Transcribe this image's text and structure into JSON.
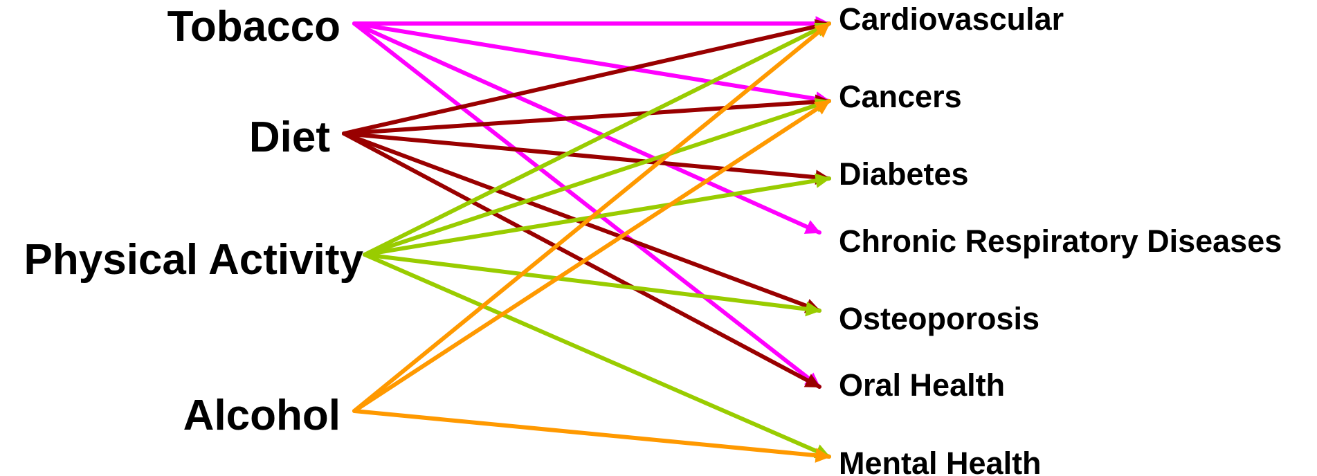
{
  "risk_factors": [
    {
      "id": "tobacco",
      "label": "Tobacco",
      "color": "#FF00FF"
    },
    {
      "id": "diet",
      "label": "Diet",
      "color": "#990000"
    },
    {
      "id": "physical_activity",
      "label": "Physical Activity",
      "color": "#99CC00"
    },
    {
      "id": "alcohol",
      "label": "Alcohol",
      "color": "#FF9900"
    }
  ],
  "diseases": [
    {
      "id": "cardiovascular",
      "label": "Cardiovascular"
    },
    {
      "id": "cancers",
      "label": "Cancers"
    },
    {
      "id": "diabetes",
      "label": "Diabetes"
    },
    {
      "id": "chronic_respiratory",
      "label": "Chronic Respiratory Diseases"
    },
    {
      "id": "osteoporosis",
      "label": "Osteoporosis"
    },
    {
      "id": "oral_health",
      "label": "Oral Health"
    },
    {
      "id": "mental_health",
      "label": "Mental Health"
    }
  ],
  "links": [
    {
      "from": "tobacco",
      "to": "cardiovascular"
    },
    {
      "from": "tobacco",
      "to": "cancers"
    },
    {
      "from": "tobacco",
      "to": "chronic_respiratory"
    },
    {
      "from": "tobacco",
      "to": "oral_health"
    },
    {
      "from": "diet",
      "to": "cardiovascular"
    },
    {
      "from": "diet",
      "to": "cancers"
    },
    {
      "from": "diet",
      "to": "diabetes"
    },
    {
      "from": "diet",
      "to": "osteoporosis"
    },
    {
      "from": "diet",
      "to": "oral_health"
    },
    {
      "from": "physical_activity",
      "to": "cardiovascular"
    },
    {
      "from": "physical_activity",
      "to": "cancers"
    },
    {
      "from": "physical_activity",
      "to": "diabetes"
    },
    {
      "from": "physical_activity",
      "to": "osteoporosis"
    },
    {
      "from": "physical_activity",
      "to": "mental_health"
    },
    {
      "from": "alcohol",
      "to": "cardiovascular"
    },
    {
      "from": "alcohol",
      "to": "cancers"
    },
    {
      "from": "alcohol",
      "to": "mental_health"
    }
  ]
}
